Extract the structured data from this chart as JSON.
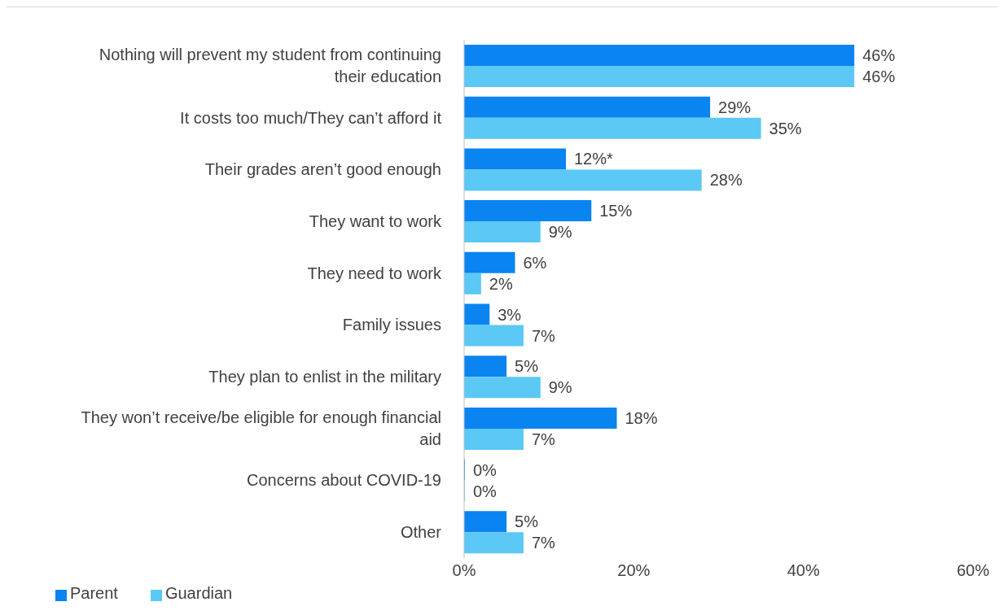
{
  "chart_data": {
    "type": "bar",
    "orientation": "horizontal",
    "categories": [
      "Nothing will prevent my student from continuing their education",
      "It costs too much/They can’t afford it",
      "Their grades aren’t good enough",
      "They want to work",
      "They need to work",
      "Family issues",
      "They plan to enlist in the military",
      "They won’t receive/be eligible for enough financial aid",
      "Concerns about COVID-19",
      "Other"
    ],
    "series": [
      {
        "name": "Parent",
        "color": "#0a84f0",
        "values": [
          46,
          29,
          12,
          15,
          6,
          3,
          5,
          18,
          0,
          5
        ],
        "value_labels": [
          "46%",
          "29%",
          "12%*",
          "15%",
          "6%",
          "3%",
          "5%",
          "18%",
          "0%",
          "5%"
        ]
      },
      {
        "name": "Guardian",
        "color": "#5bc8f5",
        "values": [
          46,
          35,
          28,
          9,
          2,
          7,
          9,
          7,
          0,
          7
        ],
        "value_labels": [
          "46%",
          "35%",
          "28%",
          "9%",
          "2%",
          "7%",
          "9%",
          "7%",
          "0%",
          "7%"
        ]
      }
    ],
    "xlim": [
      0,
      60
    ],
    "xticks": [
      {
        "value": 0,
        "label": "0%"
      },
      {
        "value": 20,
        "label": "20%"
      },
      {
        "value": 40,
        "label": "40%"
      },
      {
        "value": 60,
        "label": "60%"
      }
    ],
    "grid": false,
    "legend": "bottom left"
  }
}
